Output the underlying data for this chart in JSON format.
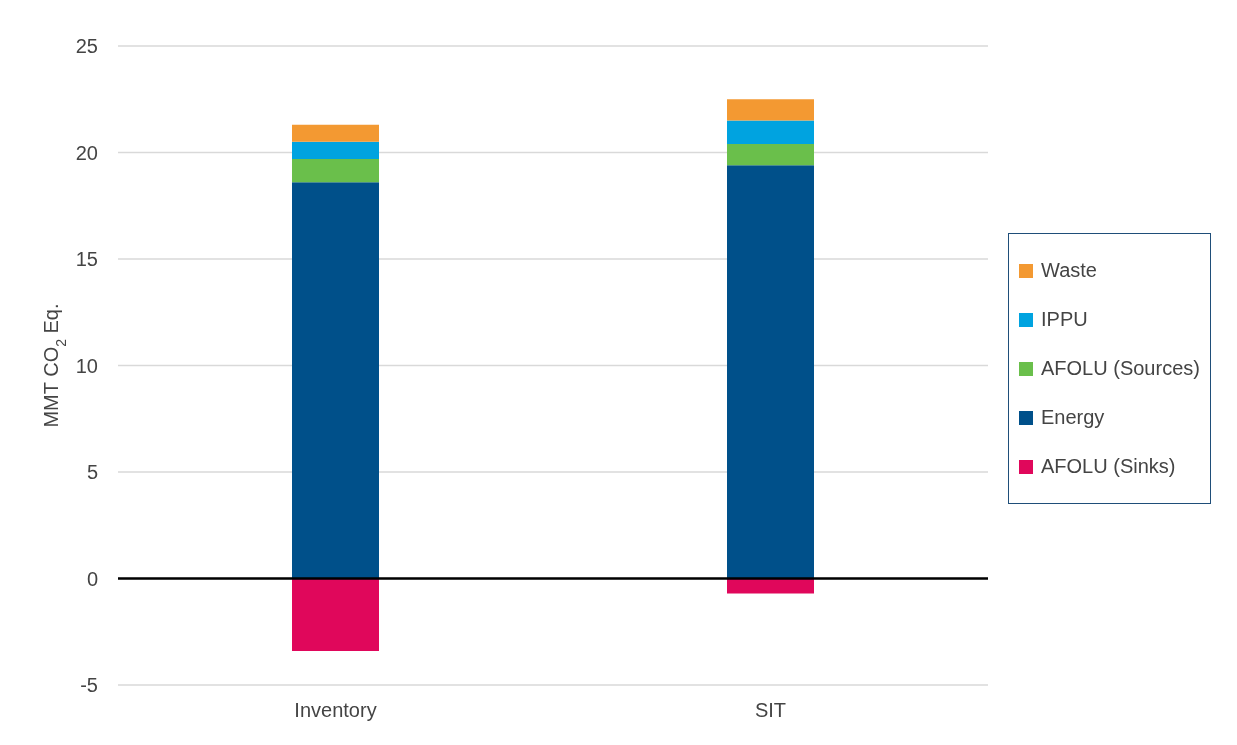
{
  "chart_data": {
    "type": "bar",
    "stacked": true,
    "ylabel": "MMT CO$_{2}$ Eq.",
    "categories": [
      "Inventory",
      "SIT"
    ],
    "series": [
      {
        "name": "AFOLU (Sinks)",
        "color": "#e0075b",
        "values": [
          -3.4,
          -0.7
        ]
      },
      {
        "name": "Energy",
        "color": "#00508a",
        "values": [
          18.6,
          19.4
        ]
      },
      {
        "name": "AFOLU (Sources)",
        "color": "#6abf4b",
        "values": [
          1.1,
          1.0
        ]
      },
      {
        "name": "IPPU",
        "color": "#00a3e0",
        "values": [
          0.8,
          1.1
        ]
      },
      {
        "name": "Waste",
        "color": "#f39932",
        "values": [
          0.8,
          1.0
        ]
      }
    ],
    "ylim": [
      -5,
      25
    ],
    "yticks": [
      -5,
      0,
      5,
      10,
      15,
      20,
      25
    ],
    "grid": "y",
    "legend": "right",
    "ref_lines": [
      {
        "axis": "y",
        "value": 0,
        "color": "#000000"
      }
    ]
  }
}
